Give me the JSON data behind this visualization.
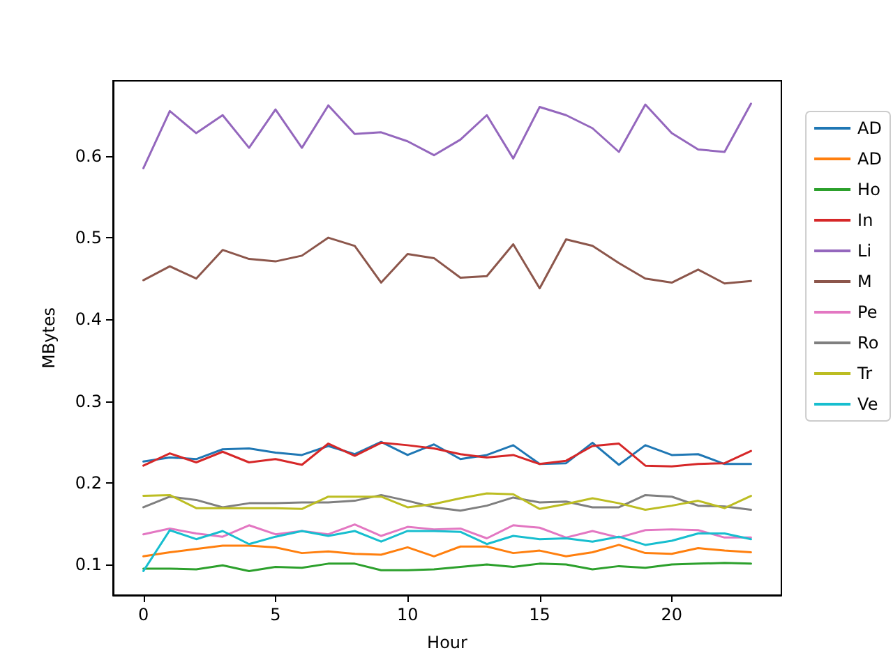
{
  "chart_data": {
    "type": "line",
    "xlabel": "Hour",
    "ylabel": "MBytes",
    "legend": "right",
    "grid": false,
    "x": [
      0,
      1,
      2,
      3,
      4,
      5,
      6,
      7,
      8,
      9,
      10,
      11,
      12,
      13,
      14,
      15,
      16,
      17,
      18,
      19,
      20,
      21,
      22,
      23
    ],
    "xlim": [
      -1.15,
      24.15
    ],
    "xticks": [
      0,
      5,
      10,
      15,
      20
    ],
    "ylim": [
      0.0625,
      0.692
    ],
    "yticks": [
      0.1,
      0.2,
      0.3,
      0.4,
      0.5,
      0.6
    ],
    "series": [
      {
        "name": "AD",
        "color": "#1f77b4",
        "values": [
          0.226,
          0.231,
          0.229,
          0.241,
          0.242,
          0.237,
          0.234,
          0.245,
          0.235,
          0.25,
          0.234,
          0.247,
          0.229,
          0.234,
          0.246,
          0.223,
          0.224,
          0.249,
          0.222,
          0.246,
          0.234,
          0.235,
          0.223,
          0.223
        ]
      },
      {
        "name": "AD",
        "color": "#ff7f0e",
        "values": [
          0.11,
          0.115,
          0.119,
          0.123,
          0.123,
          0.121,
          0.114,
          0.116,
          0.113,
          0.112,
          0.121,
          0.11,
          0.122,
          0.122,
          0.114,
          0.117,
          0.11,
          0.115,
          0.124,
          0.114,
          0.113,
          0.12,
          0.117,
          0.115
        ]
      },
      {
        "name": "Ho",
        "color": "#2ca02c",
        "values": [
          0.095,
          0.095,
          0.094,
          0.099,
          0.092,
          0.097,
          0.096,
          0.101,
          0.101,
          0.093,
          0.093,
          0.094,
          0.097,
          0.1,
          0.097,
          0.101,
          0.1,
          0.094,
          0.098,
          0.096,
          0.1,
          0.101,
          0.102,
          0.101
        ]
      },
      {
        "name": "In",
        "color": "#d62728",
        "values": [
          0.221,
          0.236,
          0.225,
          0.238,
          0.225,
          0.229,
          0.222,
          0.248,
          0.233,
          0.249,
          0.246,
          0.242,
          0.235,
          0.231,
          0.234,
          0.223,
          0.227,
          0.245,
          0.248,
          0.221,
          0.22,
          0.223,
          0.224,
          0.239
        ]
      },
      {
        "name": "Li",
        "color": "#9467bd",
        "values": [
          0.585,
          0.655,
          0.628,
          0.65,
          0.61,
          0.657,
          0.61,
          0.662,
          0.627,
          0.629,
          0.618,
          0.601,
          0.62,
          0.65,
          0.597,
          0.66,
          0.65,
          0.634,
          0.605,
          0.663,
          0.628,
          0.608,
          0.605,
          0.664
        ]
      },
      {
        "name": "M",
        "color": "#8c564b",
        "values": [
          0.448,
          0.465,
          0.45,
          0.485,
          0.474,
          0.471,
          0.478,
          0.5,
          0.49,
          0.445,
          0.48,
          0.475,
          0.451,
          0.453,
          0.492,
          0.438,
          0.498,
          0.49,
          0.469,
          0.45,
          0.445,
          0.461,
          0.444,
          0.447
        ]
      },
      {
        "name": "Pe",
        "color": "#e377c2",
        "values": [
          0.137,
          0.144,
          0.138,
          0.134,
          0.148,
          0.137,
          0.141,
          0.137,
          0.149,
          0.135,
          0.146,
          0.143,
          0.144,
          0.132,
          0.148,
          0.145,
          0.133,
          0.141,
          0.133,
          0.142,
          0.143,
          0.142,
          0.133,
          0.133
        ]
      },
      {
        "name": "Ro",
        "color": "#7f7f7f",
        "values": [
          0.17,
          0.183,
          0.179,
          0.17,
          0.175,
          0.175,
          0.176,
          0.176,
          0.178,
          0.185,
          0.178,
          0.17,
          0.166,
          0.172,
          0.182,
          0.176,
          0.177,
          0.17,
          0.17,
          0.185,
          0.183,
          0.172,
          0.171,
          0.167
        ]
      },
      {
        "name": "Tr",
        "color": "#bcbd22",
        "values": [
          0.184,
          0.185,
          0.169,
          0.169,
          0.169,
          0.169,
          0.168,
          0.183,
          0.183,
          0.183,
          0.17,
          0.174,
          0.181,
          0.187,
          0.186,
          0.168,
          0.174,
          0.181,
          0.175,
          0.167,
          0.172,
          0.178,
          0.169,
          0.184
        ]
      },
      {
        "name": "Ve",
        "color": "#17becf",
        "values": [
          0.092,
          0.142,
          0.131,
          0.141,
          0.125,
          0.134,
          0.141,
          0.135,
          0.141,
          0.128,
          0.141,
          0.141,
          0.14,
          0.125,
          0.135,
          0.131,
          0.132,
          0.128,
          0.134,
          0.124,
          0.129,
          0.138,
          0.138,
          0.131
        ]
      }
    ]
  }
}
